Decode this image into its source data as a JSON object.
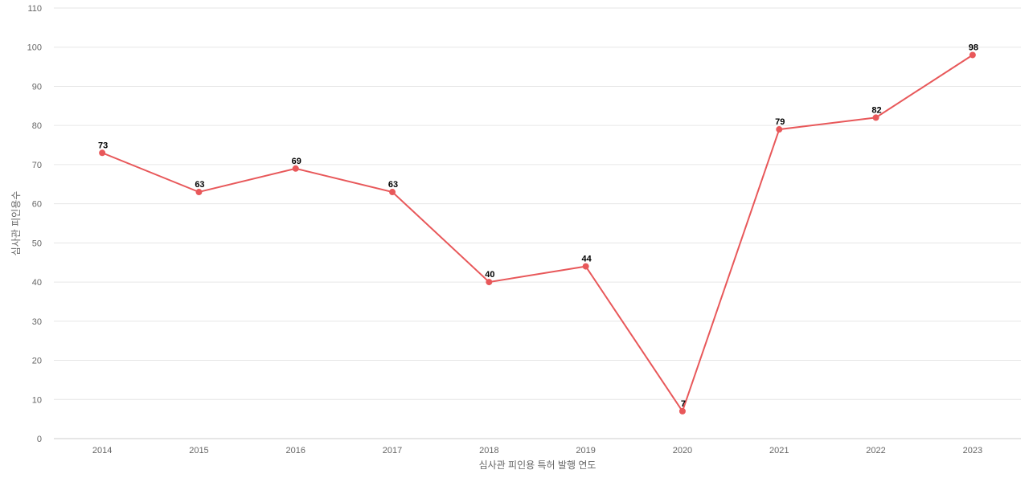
{
  "chart_data": {
    "type": "line",
    "title": "",
    "xlabel": "심사관 피인용 특허 발행 연도",
    "ylabel": "심사관 피인용수",
    "categories": [
      "2014",
      "2015",
      "2016",
      "2017",
      "2018",
      "2019",
      "2020",
      "2021",
      "2022",
      "2023"
    ],
    "series": [
      {
        "values": [
          73,
          63,
          69,
          63,
          40,
          44,
          7,
          79,
          82,
          98
        ],
        "color": "#e8585a"
      }
    ],
    "ylim": [
      0,
      110
    ],
    "yticks": [
      0,
      10,
      20,
      30,
      40,
      50,
      60,
      70,
      80,
      90,
      100,
      110
    ],
    "grid": true,
    "data_labels": true,
    "legend": "none"
  }
}
